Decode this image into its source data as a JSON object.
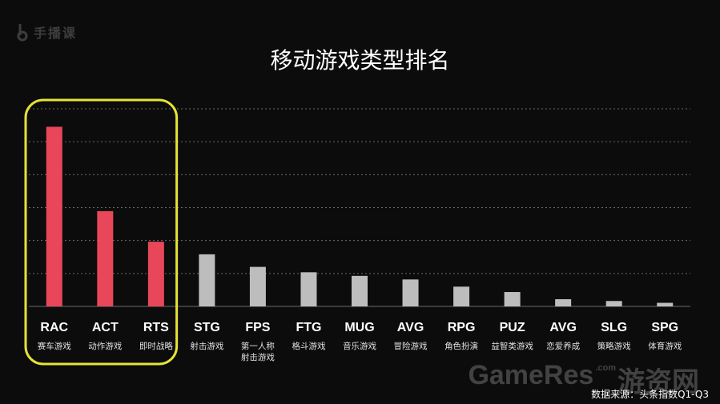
{
  "brand": {
    "logo_text": "手播课"
  },
  "watermark": {
    "main": "GameRes",
    "suffix": ".com",
    "site": "游资网"
  },
  "footnote": "数据来源：头条指数Q1-Q3",
  "colors": {
    "highlight_bar": "#e8475a",
    "normal_bar": "#bdbdbd",
    "highlight_box": "#e6e23a",
    "background": "#0c0c0c"
  },
  "chart_data": {
    "type": "bar",
    "title": "移动游戏类型排名",
    "categories": [
      "RAC",
      "ACT",
      "RTS",
      "STG",
      "FPS",
      "FTG",
      "MUG",
      "AVG",
      "RPG",
      "PUZ",
      "AVG",
      "SLG",
      "SPG"
    ],
    "sublabels": [
      [
        "赛车游戏"
      ],
      [
        "动作游戏"
      ],
      [
        "即时战略"
      ],
      [
        "射击游戏"
      ],
      [
        "第一人称",
        "射击游戏"
      ],
      [
        "格斗游戏"
      ],
      [
        "音乐游戏"
      ],
      [
        "冒险游戏"
      ],
      [
        "角色扮演"
      ],
      [
        "益智类游戏"
      ],
      [
        "恋爱养成"
      ],
      [
        "策略游戏"
      ],
      [
        "体育游戏"
      ]
    ],
    "values": [
      100,
      53,
      36,
      29,
      22,
      19,
      17,
      15,
      11,
      8,
      4,
      3,
      2
    ],
    "highlighted": [
      true,
      true,
      true,
      false,
      false,
      false,
      false,
      false,
      false,
      false,
      false,
      false,
      false
    ],
    "ylim": [
      0,
      110
    ],
    "gridlines": 6,
    "xlabel": "",
    "ylabel": ""
  }
}
